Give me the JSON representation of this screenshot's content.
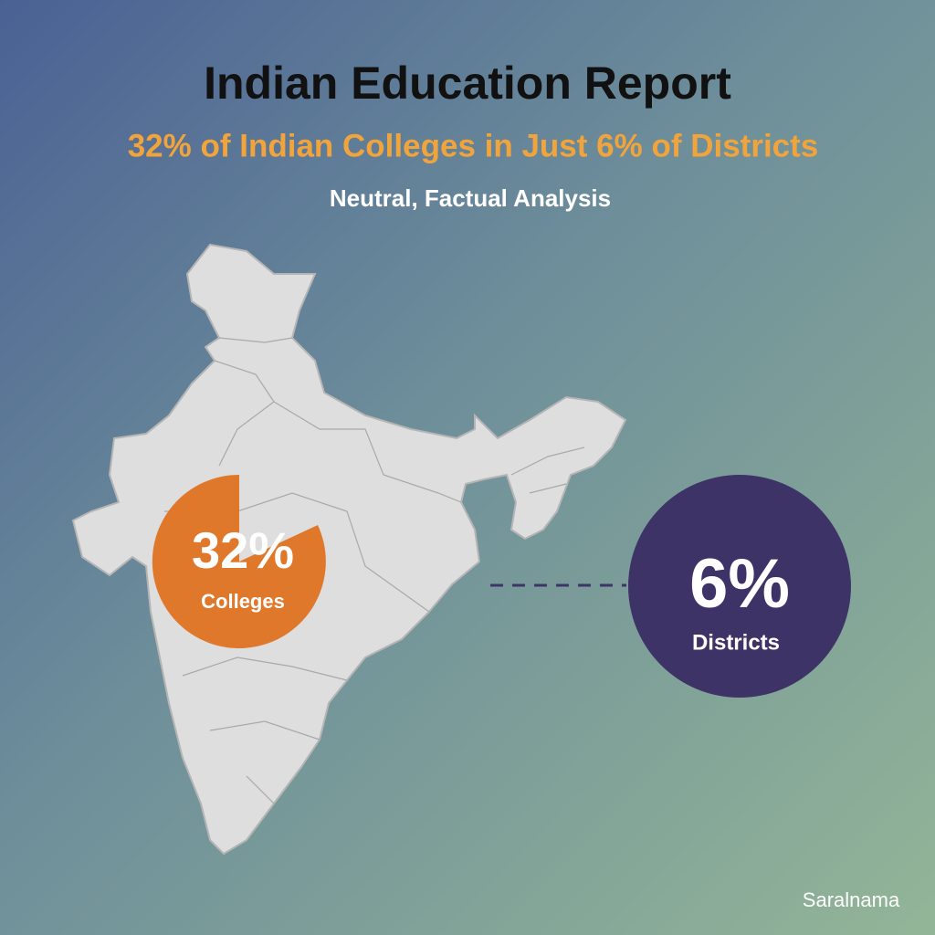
{
  "header": {
    "title": "Indian Education Report",
    "subtitle": "32% of Indian Colleges in Just 6% of Districts",
    "tagline": "Neutral, Factual Analysis"
  },
  "callouts": [
    {
      "value": "32%",
      "label": "Colleges"
    },
    {
      "value": "6%",
      "label": "Districts"
    }
  ],
  "footer": {
    "brand": "Saralnama"
  }
}
